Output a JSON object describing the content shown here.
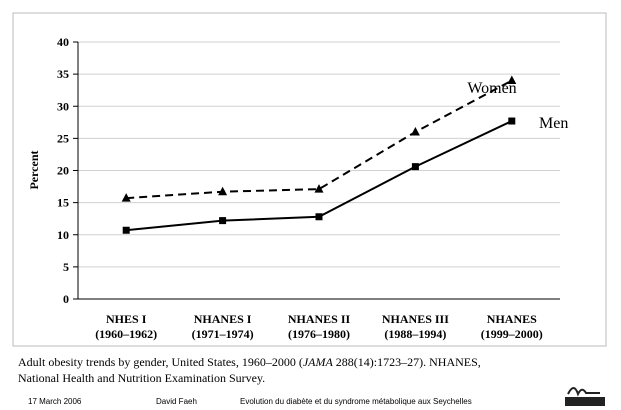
{
  "chart_data": {
    "type": "line",
    "ylabel": "Percent",
    "categories": [
      [
        "NHES I",
        "(1960–1962)"
      ],
      [
        "NHANES I",
        "(1971–1974)"
      ],
      [
        "NHANES II",
        "(1976–1980)"
      ],
      [
        "NHANES III",
        "(1988–1994)"
      ],
      [
        "NHANES",
        "(1999–2000)"
      ]
    ],
    "series": [
      {
        "name": "Women",
        "color": "#000000",
        "marker": "triangle",
        "dash": true,
        "values": [
          15.7,
          16.7,
          17.1,
          26.0,
          34.0
        ]
      },
      {
        "name": "Men",
        "color": "#000000",
        "marker": "square",
        "dash": false,
        "values": [
          10.7,
          12.2,
          12.8,
          20.6,
          27.7
        ]
      }
    ],
    "ylim": [
      0,
      40
    ],
    "yticks": [
      0,
      5,
      10,
      15,
      20,
      25,
      30,
      35,
      40
    ],
    "grid": true
  },
  "caption": [
    "Adult obesity trends by gender, United States, 1960–2000 (",
    "JAMA",
    " 288(14):1723–27). NHANES,",
    "National Health and Nutrition Examination Survey."
  ],
  "footer": {
    "date": "17 March 2006",
    "author": "David Faeh",
    "title": "Evolution du diabète et du syndrome métabolique aux Seychelles"
  }
}
